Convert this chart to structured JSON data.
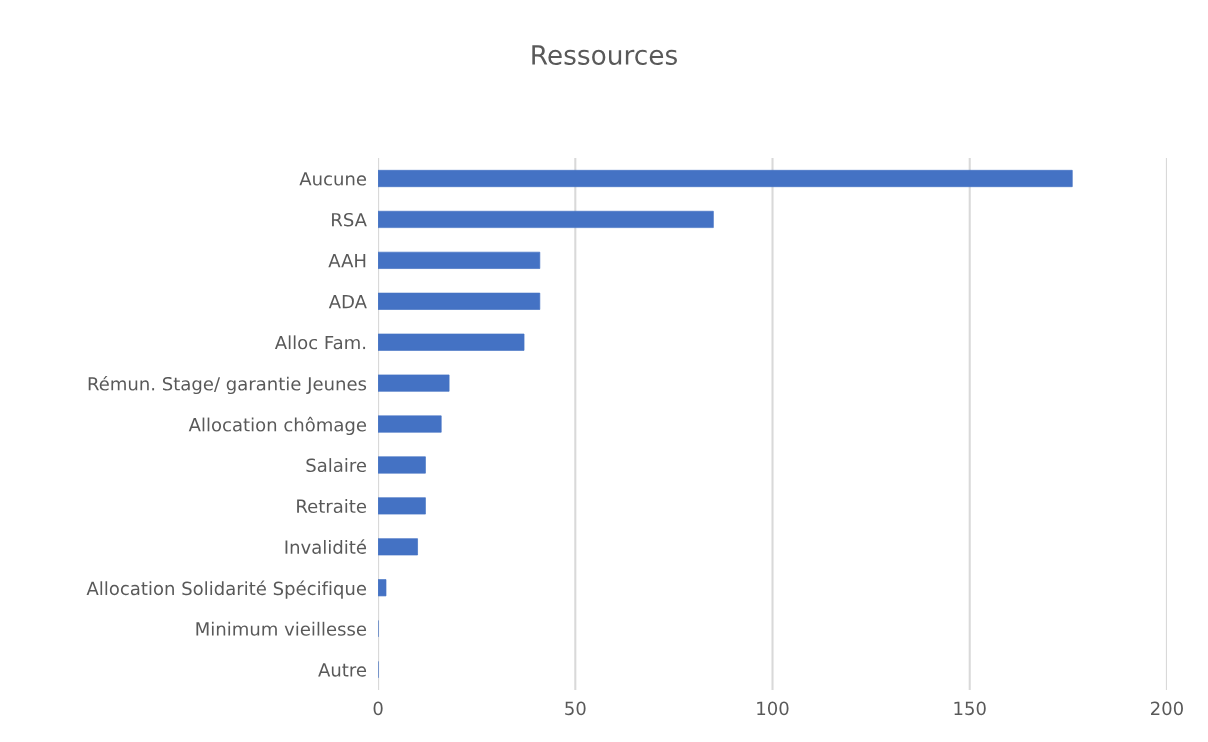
{
  "chart_data": {
    "type": "bar",
    "orientation": "horizontal",
    "title": "Ressources",
    "categories": [
      "Aucune",
      "RSA",
      "AAH",
      "ADA",
      "Alloc Fam.",
      "Rémun. Stage/ garantie Jeunes",
      "Allocation chômage",
      "Salaire",
      "Retraite",
      "Invalidité",
      "Allocation Solidarité Spécifique",
      "Minimum vieillesse",
      "Autre"
    ],
    "values": [
      176,
      85,
      41,
      41,
      37,
      18,
      16,
      12,
      12,
      10,
      2,
      0,
      0
    ],
    "color": "#4472c4",
    "xlim": [
      0,
      200
    ],
    "xticks": [
      0,
      50,
      100,
      150,
      200
    ],
    "grid": "x",
    "legend": false
  }
}
